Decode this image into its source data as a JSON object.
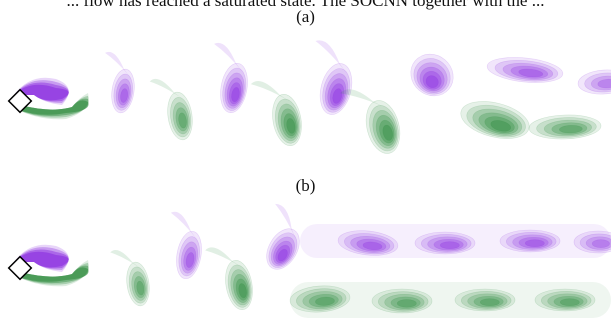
{
  "caption_fragment": "... flow has reached a saturated state. The SOCNN together with the ...",
  "panels": [
    {
      "label": "(a)"
    },
    {
      "label": "(b)"
    }
  ],
  "colors": {
    "positive_vorticity": "#8b2fe0",
    "negative_vorticity": "#2e8b3e",
    "cylinder_fill": "#ffffff",
    "cylinder_stroke": "#000000"
  }
}
